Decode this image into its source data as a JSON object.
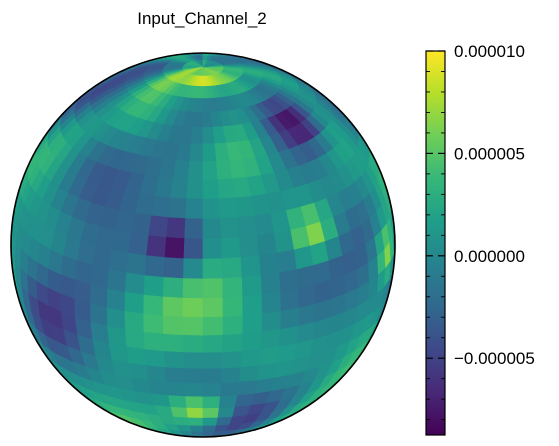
{
  "chart_data": {
    "type": "heatmap",
    "projection": "orthographic",
    "title": "Input_Channel_2",
    "colormap": "viridis",
    "colormap_stops": [
      "#440154",
      "#482878",
      "#3e4989",
      "#31688e",
      "#26828e",
      "#1f9e89",
      "#35b779",
      "#6ece58",
      "#b5de2b",
      "#fde725"
    ],
    "vmin": -8.75e-06,
    "vmax": 1e-05,
    "colorbar": {
      "ticks": [
        1e-05,
        5e-06,
        0.0,
        -5e-06
      ],
      "tick_labels": [
        "0.000010",
        "0.000005",
        "0.000000",
        "−0.000005"
      ]
    },
    "notable_regions": [
      {
        "value": -8e-06,
        "lat": 55,
        "lon": 55
      },
      {
        "value": -8e-06,
        "lat": 22,
        "lon": -10
      },
      {
        "value": 7e-06,
        "lat": -38,
        "lon": -2
      },
      {
        "value": 6.5e-06,
        "lat": 4,
        "lon": 75
      },
      {
        "value": 6.5e-06,
        "lat": 22,
        "lon": 38
      },
      {
        "value": 9e-06,
        "lat": 82,
        "lon": 0
      }
    ]
  }
}
